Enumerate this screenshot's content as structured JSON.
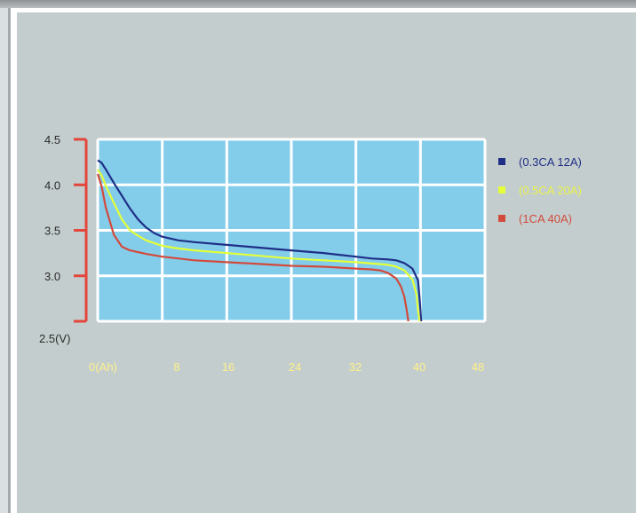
{
  "chart_data": {
    "type": "line",
    "x_tick_labels": [
      "0(Ah)",
      "8",
      "16",
      "24",
      "32",
      "40",
      "48"
    ],
    "x_tick_values": [
      0,
      8,
      16,
      24,
      32,
      40,
      48
    ],
    "y_tick_labels": [
      "4.5",
      "4.0",
      "3.5",
      "3.0",
      "2.5(V)"
    ],
    "y_tick_values": [
      4.5,
      4.0,
      3.5,
      3.0,
      2.5
    ],
    "xlim": [
      0,
      48
    ],
    "ylim": [
      2.5,
      4.5
    ],
    "grid": true,
    "legend_position": "right",
    "series": [
      {
        "name": "(0.3CA 12A)",
        "color": "#1f2f86",
        "x": [
          0,
          0.5,
          1,
          2,
          3,
          4,
          5,
          6,
          7,
          8,
          10,
          12,
          16,
          20,
          24,
          28,
          32,
          34,
          36,
          37,
          38,
          39,
          39.7,
          39.9,
          40.1
        ],
        "y": [
          4.27,
          4.24,
          4.17,
          4.02,
          3.88,
          3.74,
          3.62,
          3.53,
          3.47,
          3.43,
          3.39,
          3.37,
          3.34,
          3.31,
          3.28,
          3.25,
          3.21,
          3.19,
          3.18,
          3.17,
          3.14,
          3.08,
          2.95,
          2.75,
          2.5
        ]
      },
      {
        "name": "(0.5CA 20A)",
        "color": "#e4ff3a",
        "x": [
          0,
          0.5,
          1,
          2,
          3,
          4,
          5,
          6,
          7,
          8,
          10,
          12,
          16,
          20,
          24,
          28,
          32,
          36,
          37,
          38,
          39,
          39.5,
          39.7,
          39.9
        ],
        "y": [
          4.17,
          4.1,
          3.99,
          3.8,
          3.62,
          3.5,
          3.44,
          3.39,
          3.36,
          3.33,
          3.3,
          3.28,
          3.25,
          3.22,
          3.19,
          3.17,
          3.15,
          3.12,
          3.1,
          3.06,
          2.96,
          2.8,
          2.62,
          2.5
        ]
      },
      {
        "name": "(1CA  40A)",
        "color": "#d24a3c",
        "x": [
          0,
          0.5,
          1,
          2,
          3,
          4,
          5,
          6,
          8,
          12,
          16,
          20,
          24,
          28,
          32,
          34,
          35,
          36,
          37,
          37.6,
          38,
          38.3,
          38.5
        ],
        "y": [
          4.12,
          3.98,
          3.75,
          3.45,
          3.32,
          3.28,
          3.26,
          3.24,
          3.21,
          3.17,
          3.15,
          3.13,
          3.11,
          3.1,
          3.08,
          3.07,
          3.06,
          3.03,
          2.97,
          2.88,
          2.77,
          2.62,
          2.5
        ]
      }
    ]
  },
  "style": {
    "panel_bg": "#c4cdcd",
    "plot_bg": "#83cdeb",
    "grid_color": "#ffffff",
    "axis_color": "#e2463c",
    "x_tick_color": "#fff18a",
    "y_tick_color": "#2b2b2b"
  }
}
